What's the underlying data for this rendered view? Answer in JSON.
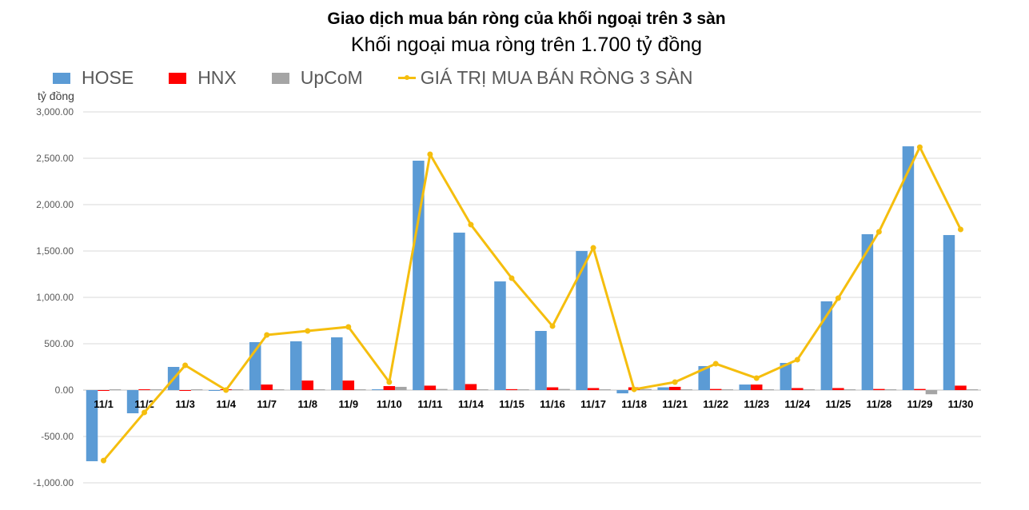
{
  "header": {
    "title": "Giao dịch mua bán ròng của khối ngoại trên 3 sàn",
    "subtitle": "Khối ngoại mua ròng trên 1.700 tỷ đồng"
  },
  "legend": {
    "hose": "HOSE",
    "hnx": "HNX",
    "upcom": "UpCoM",
    "total": "GIÁ TRỊ MUA BÁN RÒNG 3 SÀN"
  },
  "axis": {
    "unit": "tỷ đồng"
  },
  "colors": {
    "hose": "#5b9bd5",
    "hnx": "#ff0000",
    "upcom": "#a5a5a5",
    "total": "#f5be0e",
    "grid": "#d9d9d9"
  },
  "chart_data": {
    "type": "bar+line",
    "title": "Giao dịch mua bán ròng của khối ngoại trên 3 sàn",
    "subtitle": "Khối ngoại mua ròng trên 1.700 tỷ đồng",
    "xlabel": "",
    "ylabel": "tỷ đồng",
    "ylim": [
      -1000,
      3000
    ],
    "yticks": [
      -1000,
      -500,
      0,
      500,
      1000,
      1500,
      2000,
      2500,
      3000
    ],
    "ytick_labels": [
      "-1,000.00",
      "-500.00",
      "0.00",
      "500.00",
      "1,000.00",
      "1,500.00",
      "2,000.00",
      "2,500.00",
      "3,000.00"
    ],
    "grid": true,
    "legend_position": "top",
    "categories": [
      "11/1",
      "11/2",
      "11/3",
      "11/4",
      "11/7",
      "11/8",
      "11/9",
      "11/10",
      "11/11",
      "11/14",
      "11/15",
      "11/16",
      "11/17",
      "11/18",
      "11/21",
      "11/22",
      "11/23",
      "11/24",
      "11/25",
      "11/28",
      "11/29",
      "11/30"
    ],
    "series": [
      {
        "name": "HOSE",
        "type": "bar",
        "values": [
          -767,
          -250,
          250,
          -5,
          517,
          526,
          569,
          8,
          2474,
          1698,
          1172,
          638,
          1500,
          -35,
          30,
          259,
          60,
          293,
          957,
          1681,
          2629,
          1672
        ]
      },
      {
        "name": "HNX",
        "type": "bar",
        "values": [
          -5,
          5,
          -8,
          5,
          60,
          103,
          103,
          43,
          48,
          65,
          10,
          30,
          22,
          30,
          35,
          12,
          60,
          22,
          22,
          12,
          12,
          48
        ]
      },
      {
        "name": "UpCoM",
        "type": "bar",
        "values": [
          2,
          2,
          2,
          2,
          2,
          2,
          2,
          35,
          12,
          2,
          2,
          12,
          2,
          12,
          2,
          2,
          2,
          2,
          2,
          2,
          -45,
          2
        ]
      },
      {
        "name": "GIÁ TRỊ MUA BÁN RÒNG 3 SÀN",
        "type": "line",
        "values": [
          -760,
          -241,
          267,
          0,
          595,
          638,
          681,
          86,
          2543,
          1784,
          1207,
          690,
          1534,
          8,
          86,
          284,
          129,
          328,
          991,
          1707,
          2620,
          1733
        ]
      }
    ]
  }
}
